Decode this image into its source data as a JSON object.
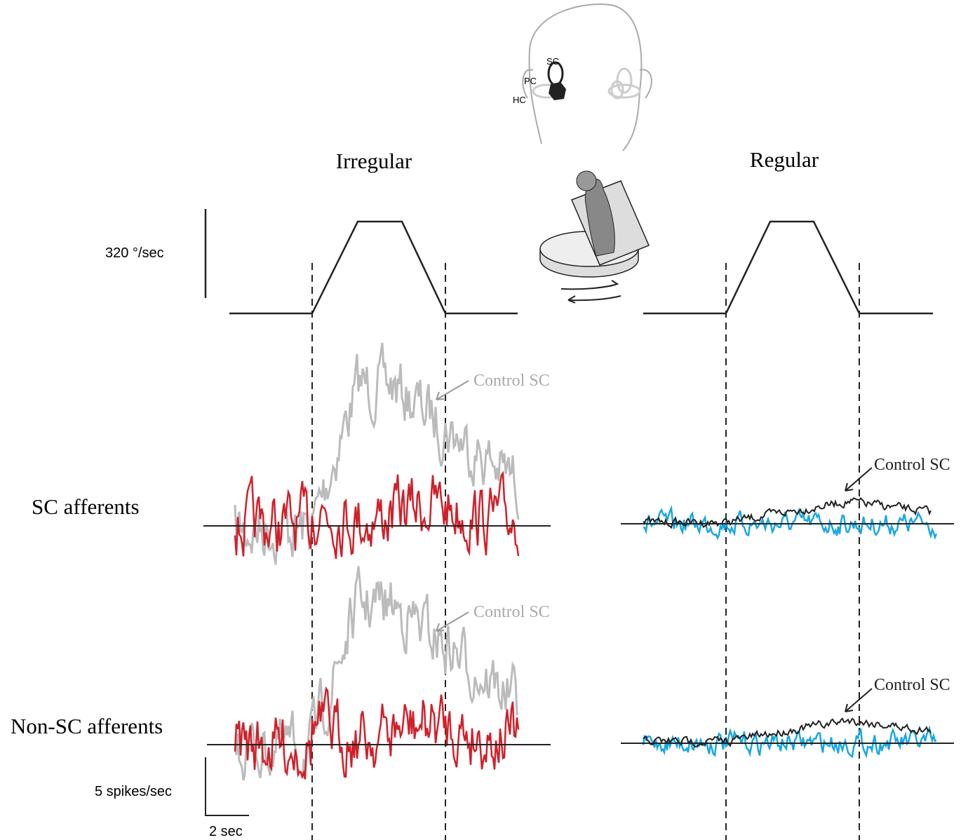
{
  "head": {
    "canals": [
      "SC",
      "PC",
      "HC"
    ]
  },
  "columns": [
    "Irregular",
    "Regular"
  ],
  "velocity_scale": "320 °/sec",
  "rows": [
    "SC afferents",
    "Non-SC afferents"
  ],
  "annotations": [
    "Control SC",
    "Control SC",
    "Control SC",
    "Control SC"
  ],
  "scale_bar": {
    "y": "5 spikes/sec",
    "x": "2 sec"
  }
}
